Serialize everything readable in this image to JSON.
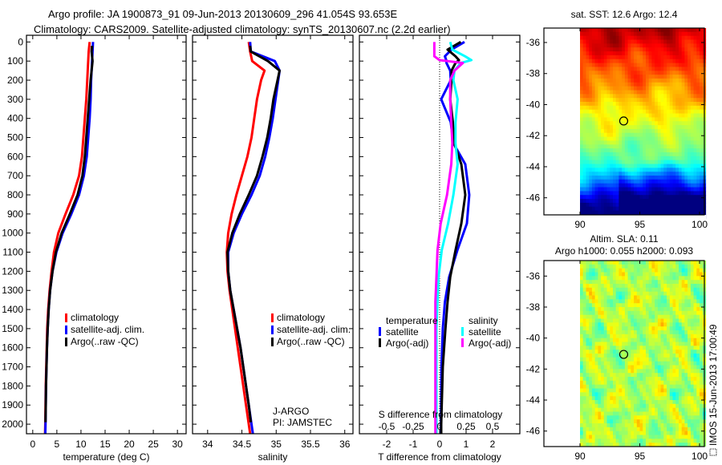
{
  "title": {
    "line1": "Argo profile: JA 1900873_91 09-Jun-2013 20130609_296 41.054S 93.653E",
    "line2": "Climatology: CARS2009. Satellite-adjusted climatology: synTS_20130607.nc (2.2d earlier)"
  },
  "colors": {
    "climatology": "#ff0000",
    "satellite": "#0000ff",
    "argo": "#000000",
    "sal_satellite": "#00ffff",
    "sal_argo": "#ff00ff"
  },
  "chart_data": [
    {
      "type": "line",
      "id": "temperature",
      "xlabel": "temperature (deg C)",
      "xticks": [
        0,
        5,
        10,
        15,
        20,
        25,
        30
      ],
      "xlim": [
        -1.3,
        31.8
      ],
      "ylim": [
        -35,
        2050
      ],
      "yticks": [
        0,
        100,
        200,
        300,
        400,
        500,
        600,
        700,
        800,
        900,
        1000,
        1100,
        1200,
        1300,
        1400,
        1500,
        1600,
        1700,
        1800,
        1900,
        2000
      ],
      "legend": [
        "climatology",
        "satellite-adj. clim.",
        "Argo(..raw -QC)"
      ],
      "series": [
        {
          "name": "climatology",
          "color": "#ff0000",
          "depth": [
            0,
            50,
            100,
            150,
            200,
            300,
            400,
            500,
            600,
            700,
            800,
            900,
            1000,
            1100,
            1200,
            1300,
            1400,
            1500,
            1600,
            1700,
            1800,
            1900,
            2000,
            2050
          ],
          "values": [
            11.8,
            11.6,
            11.5,
            11.4,
            11.3,
            11.1,
            10.8,
            10.5,
            10.2,
            9.6,
            8.4,
            6.8,
            5.3,
            4.4,
            3.9,
            3.5,
            3.2,
            3.0,
            2.9,
            2.8,
            2.7,
            2.65,
            2.6,
            2.55
          ]
        },
        {
          "name": "satellite-adj. clim.",
          "color": "#0000ff",
          "depth": [
            0,
            50,
            100,
            150,
            200,
            300,
            400,
            500,
            600,
            700,
            800,
            900,
            1000,
            1100,
            1200,
            1300,
            1400,
            1500,
            1600,
            1700,
            1800,
            1900,
            2000,
            2050
          ],
          "values": [
            12.5,
            12.4,
            12.3,
            12.2,
            12.1,
            12.0,
            11.8,
            11.5,
            11.2,
            10.6,
            9.6,
            8.0,
            6.2,
            4.9,
            4.1,
            3.6,
            3.3,
            3.1,
            2.95,
            2.85,
            2.75,
            2.7,
            2.65,
            2.6
          ]
        },
        {
          "name": "Argo(..raw -QC)",
          "color": "#000000",
          "depth": [
            20,
            50,
            100,
            150,
            200,
            300,
            400,
            500,
            600,
            700,
            800,
            900,
            1000,
            1100,
            1200,
            1300,
            1400,
            1500,
            1600,
            1700,
            1800,
            1900,
            1990
          ],
          "values": [
            12.3,
            12.2,
            12.4,
            12.2,
            12.0,
            11.7,
            11.4,
            11.1,
            10.8,
            10.3,
            9.3,
            7.7,
            6.0,
            4.8,
            4.1,
            3.6,
            3.3,
            3.1,
            2.95,
            2.85,
            2.75,
            2.7,
            2.65
          ]
        }
      ]
    },
    {
      "type": "line",
      "id": "salinity",
      "xlabel": "salinity",
      "xticks": [
        34,
        34.5,
        35,
        35.5,
        36
      ],
      "xlim": [
        33.78,
        36.12
      ],
      "ylim": [
        -35,
        2050
      ],
      "legend": [
        "climatology",
        "satellite-adj. clim.",
        "Argo(..raw -QC)"
      ],
      "annotation": [
        "J-ARGO",
        "PI: JAMSTEC"
      ],
      "series": [
        {
          "name": "climatology",
          "color": "#ff0000",
          "depth": [
            0,
            50,
            100,
            150,
            200,
            300,
            400,
            500,
            600,
            700,
            800,
            900,
            1000,
            1100,
            1200,
            1300,
            1400,
            1500,
            1600,
            1700,
            1800,
            1900,
            2000,
            2050
          ],
          "values": [
            34.6,
            34.62,
            34.65,
            34.83,
            34.78,
            34.72,
            34.68,
            34.64,
            34.58,
            34.5,
            34.42,
            34.35,
            34.3,
            34.28,
            34.29,
            34.32,
            34.36,
            34.4,
            34.44,
            34.48,
            34.52,
            34.56,
            34.6,
            34.62
          ]
        },
        {
          "name": "satellite-adj. clim.",
          "color": "#0000ff",
          "depth": [
            0,
            50,
            100,
            150,
            200,
            300,
            400,
            500,
            600,
            700,
            800,
            900,
            1000,
            1100,
            1200,
            1300,
            1400,
            1500,
            1600,
            1700,
            1800,
            1900,
            2000,
            2050
          ],
          "values": [
            34.62,
            34.63,
            34.98,
            35.05,
            35.03,
            34.99,
            34.95,
            34.9,
            34.84,
            34.76,
            34.64,
            34.5,
            34.38,
            34.3,
            34.3,
            34.33,
            34.38,
            34.43,
            34.48,
            34.52,
            34.56,
            34.6,
            34.64,
            34.66
          ]
        },
        {
          "name": "Argo(..raw -QC)",
          "color": "#000000",
          "depth": [
            20,
            50,
            100,
            150,
            200,
            300,
            400,
            500,
            600,
            700,
            800,
            900,
            1000,
            1100,
            1200,
            1300,
            1400,
            1500,
            1600,
            1700,
            1800,
            1900,
            1990
          ],
          "values": [
            34.62,
            34.63,
            34.88,
            35.05,
            35.02,
            34.96,
            34.92,
            34.87,
            34.8,
            34.72,
            34.6,
            34.47,
            34.36,
            34.29,
            34.3,
            34.33,
            34.38,
            34.43,
            34.48,
            34.52,
            34.56,
            34.6,
            34.63
          ]
        }
      ]
    },
    {
      "type": "line",
      "id": "differences",
      "xlabel": "T difference from climatology",
      "xticks": [
        -2,
        -1,
        0,
        1,
        2
      ],
      "xlim": [
        -3.03,
        3.03
      ],
      "s_xlabel": "S difference from climatology",
      "s_xticks": [
        "-0.5",
        "-0.25",
        "0",
        "0.25",
        "0.5"
      ],
      "s_scale": 4,
      "ylim": [
        -35,
        2050
      ],
      "legend": {
        "temperature_title": "temperature",
        "salinity_title": "salinity",
        "t_sat": "satellite",
        "t_argo": "Argo(-adj)",
        "s_sat": "satellite",
        "s_argo": "Argo(-adj)"
      },
      "series": [
        {
          "name": "T satellite",
          "color": "#0000ff",
          "axis": "T",
          "depth": [
            0,
            40,
            75,
            95,
            110,
            150,
            200,
            300,
            420,
            530,
            640,
            800,
            950,
            1090,
            1230,
            1360,
            1500,
            1700,
            2000,
            2050
          ],
          "values": [
            0.94,
            0.45,
            0.2,
            0.25,
            0.26,
            0.4,
            0.42,
            0.06,
            0.42,
            0.52,
            0.97,
            1.12,
            1.03,
            0.67,
            0.36,
            0.2,
            0.12,
            0.07,
            0.05,
            0.05
          ]
        },
        {
          "name": "T Argo(-adj)",
          "color": "#000000",
          "axis": "T",
          "depth": [
            0,
            40,
            75,
            95,
            110,
            150,
            200,
            300,
            420,
            530,
            640,
            800,
            950,
            1090,
            1230,
            1360,
            1500,
            1700,
            2000,
            2050
          ],
          "values": [
            0.8,
            0.3,
            0.6,
            0.73,
            0.6,
            0.45,
            0.45,
            0.4,
            0.5,
            0.55,
            0.82,
            0.97,
            0.82,
            0.6,
            0.4,
            0.3,
            0.22,
            0.12,
            0.06,
            0.06
          ]
        },
        {
          "name": "S satellite",
          "color": "#00ffff",
          "axis": "S",
          "depth": [
            0,
            40,
            75,
            95,
            110,
            150,
            200,
            300,
            420,
            530,
            640,
            800,
            950,
            1090,
            1230,
            1360,
            1500,
            1700,
            2000,
            2050
          ],
          "values": [
            0.1,
            0.12,
            0.24,
            0.3,
            0.2,
            0.14,
            0.13,
            0.17,
            0.15,
            0.15,
            0.17,
            0.13,
            0.08,
            0.02,
            -0.01,
            -0.02,
            -0.03,
            -0.03,
            -0.03,
            -0.03
          ]
        },
        {
          "name": "S Argo(-adj)",
          "color": "#ff00ff",
          "axis": "S",
          "depth": [
            0,
            40,
            75,
            95,
            110,
            150,
            200,
            300,
            420,
            530,
            640,
            800,
            950,
            1090,
            1230,
            1360,
            1500,
            1700,
            2000,
            2050
          ],
          "values": [
            -0.05,
            -0.05,
            -0.05,
            0.0,
            0.22,
            0.14,
            0.1,
            0.1,
            0.11,
            0.12,
            0.11,
            0.07,
            0.01,
            -0.02,
            -0.03,
            -0.04,
            -0.04,
            -0.04,
            -0.04,
            -0.04
          ]
        }
      ]
    },
    {
      "type": "heatmap",
      "id": "sst_map",
      "title": "sat. SST: 12.6 Argo: 12.4",
      "xticks": [
        "90",
        "95",
        "100"
      ],
      "yticks": [
        "-36",
        "-38",
        "-40",
        "-42",
        "-44",
        "-46"
      ],
      "xlim": [
        86.98,
        100.4
      ],
      "ylim": [
        -47.1,
        -35.07
      ],
      "data_lon_range": [
        90,
        100.4
      ],
      "marker": {
        "lon": 93.653,
        "lat": -41.054
      }
    },
    {
      "type": "heatmap",
      "id": "sla_map",
      "title": "Altim. SLA: 0.11",
      "subtitle": "Argo h1000: 0.055 h2000: 0.093",
      "xticks": [
        "90",
        "95",
        "100"
      ],
      "yticks": [
        "-36",
        "-38",
        "-40",
        "-42",
        "-44",
        "-46"
      ],
      "xlim": [
        86.98,
        100.4
      ],
      "ylim": [
        -47.0,
        -35.0
      ],
      "data_lon_range": [
        90,
        100.4
      ],
      "marker": {
        "lon": 93.653,
        "lat": -41.054
      },
      "side_label": "IMOS 15-Jun-2013 17:00:49"
    }
  ]
}
